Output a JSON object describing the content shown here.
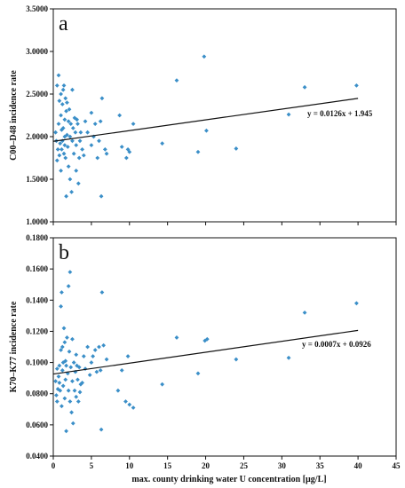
{
  "chart_data": [
    {
      "type": "scatter",
      "panel_label": "a",
      "ylabel": "C00–D48  incidence rate",
      "xlabel": "",
      "ylim": [
        1.0,
        3.5
      ],
      "yticks": [
        "1.0000",
        "1.5000",
        "2.0000",
        "2.5000",
        "3.0000",
        "3.5000"
      ],
      "xlim": [
        0,
        45
      ],
      "xticks": [],
      "marker_color": "#3b8fc8",
      "grid": false,
      "trendline": {
        "slope": 0.0126,
        "intercept": 1.945,
        "label": "y = 0.0126x + 1.945"
      },
      "points": [
        [
          0.3,
          2.05
        ],
        [
          0.4,
          1.95
        ],
        [
          0.5,
          2.6
        ],
        [
          0.5,
          1.72
        ],
        [
          0.6,
          1.85
        ],
        [
          0.7,
          2.15
        ],
        [
          0.7,
          2.72
        ],
        [
          0.8,
          1.78
        ],
        [
          0.8,
          2.42
        ],
        [
          0.9,
          1.92
        ],
        [
          1.0,
          2.25
        ],
        [
          1.0,
          1.6
        ],
        [
          1.0,
          2.5
        ],
        [
          1.1,
          2.08
        ],
        [
          1.1,
          1.85
        ],
        [
          1.2,
          2.38
        ],
        [
          1.2,
          1.95
        ],
        [
          1.3,
          2.55
        ],
        [
          1.3,
          2.1
        ],
        [
          1.4,
          1.8
        ],
        [
          1.4,
          2.6
        ],
        [
          1.5,
          2.2
        ],
        [
          1.5,
          1.9
        ],
        [
          1.5,
          2.0
        ],
        [
          1.6,
          1.75
        ],
        [
          1.6,
          2.45
        ],
        [
          1.7,
          2.3
        ],
        [
          1.7,
          1.3
        ],
        [
          1.8,
          2.02
        ],
        [
          1.8,
          2.4
        ],
        [
          1.9,
          1.88
        ],
        [
          2.0,
          1.65
        ],
        [
          2.0,
          2.18
        ],
        [
          2.1,
          2.32
        ],
        [
          2.2,
          1.5
        ],
        [
          2.2,
          2.0
        ],
        [
          2.3,
          2.15
        ],
        [
          2.4,
          1.35
        ],
        [
          2.5,
          1.95
        ],
        [
          2.5,
          2.55
        ],
        [
          2.6,
          2.1
        ],
        [
          2.7,
          1.8
        ],
        [
          2.8,
          2.22
        ],
        [
          2.9,
          2.05
        ],
        [
          3.0,
          1.6
        ],
        [
          3.0,
          1.9
        ],
        [
          3.1,
          2.2
        ],
        [
          3.2,
          2.15
        ],
        [
          3.3,
          1.45
        ],
        [
          3.4,
          1.75
        ],
        [
          3.5,
          1.95
        ],
        [
          3.6,
          2.05
        ],
        [
          3.8,
          1.85
        ],
        [
          4.0,
          1.78
        ],
        [
          4.2,
          2.18
        ],
        [
          4.5,
          2.05
        ],
        [
          5.0,
          1.9
        ],
        [
          5.0,
          2.28
        ],
        [
          5.3,
          2.0
        ],
        [
          5.5,
          2.15
        ],
        [
          5.8,
          1.75
        ],
        [
          6.0,
          1.95
        ],
        [
          6.2,
          2.18
        ],
        [
          6.3,
          1.3
        ],
        [
          6.4,
          2.45
        ],
        [
          6.8,
          1.85
        ],
        [
          7.0,
          1.8
        ],
        [
          8.7,
          2.25
        ],
        [
          9.0,
          1.88
        ],
        [
          9.6,
          1.75
        ],
        [
          9.8,
          1.85
        ],
        [
          10.0,
          1.82
        ],
        [
          10.5,
          2.15
        ],
        [
          14.3,
          1.92
        ],
        [
          16.2,
          2.66
        ],
        [
          19.0,
          1.82
        ],
        [
          19.8,
          2.94
        ],
        [
          20.1,
          2.07
        ],
        [
          24.0,
          1.86
        ],
        [
          30.9,
          2.26
        ],
        [
          33.0,
          2.58
        ],
        [
          39.8,
          2.6
        ]
      ]
    },
    {
      "type": "scatter",
      "panel_label": "b",
      "ylabel": "K70–K77  incidence rate",
      "xlabel": "max. county drinking water U concentration [µg/L]",
      "ylim": [
        0.04,
        0.18
      ],
      "yticks": [
        "0.0400",
        "0.0600",
        "0.0800",
        "0.1000",
        "0.1200",
        "0.1400",
        "0.1600",
        "0.1800"
      ],
      "xlim": [
        0,
        45
      ],
      "xticks": [
        "0",
        "5",
        "10",
        "15",
        "20",
        "25",
        "30",
        "35",
        "40",
        "45"
      ],
      "marker_color": "#3b8fc8",
      "grid": false,
      "trendline": {
        "slope": 0.0007,
        "intercept": 0.0926,
        "label": "y = 0.0007x + 0.0926"
      },
      "points": [
        [
          0.3,
          0.088
        ],
        [
          0.4,
          0.079
        ],
        [
          0.5,
          0.096
        ],
        [
          0.5,
          0.075
        ],
        [
          0.6,
          0.083
        ],
        [
          0.7,
          0.091
        ],
        [
          0.8,
          0.087
        ],
        [
          0.8,
          0.098
        ],
        [
          0.9,
          0.082
        ],
        [
          1.0,
          0.108
        ],
        [
          1.0,
          0.136
        ],
        [
          1.1,
          0.145
        ],
        [
          1.1,
          0.072
        ],
        [
          1.2,
          0.11
        ],
        [
          1.2,
          0.095
        ],
        [
          1.3,
          0.1
        ],
        [
          1.3,
          0.085
        ],
        [
          1.4,
          0.122
        ],
        [
          1.5,
          0.113
        ],
        [
          1.5,
          0.077
        ],
        [
          1.6,
          0.101
        ],
        [
          1.6,
          0.089
        ],
        [
          1.7,
          0.056
        ],
        [
          1.7,
          0.098
        ],
        [
          1.8,
          0.116
        ],
        [
          1.9,
          0.093
        ],
        [
          2.0,
          0.082
        ],
        [
          2.0,
          0.149
        ],
        [
          2.1,
          0.107
        ],
        [
          2.2,
          0.158
        ],
        [
          2.2,
          0.075
        ],
        [
          2.3,
          0.097
        ],
        [
          2.4,
          0.068
        ],
        [
          2.5,
          0.115
        ],
        [
          2.5,
          0.088
        ],
        [
          2.6,
          0.061
        ],
        [
          2.7,
          0.1
        ],
        [
          2.8,
          0.082
        ],
        [
          2.9,
          0.094
        ],
        [
          3.0,
          0.078
        ],
        [
          3.0,
          0.105
        ],
        [
          3.1,
          0.098
        ],
        [
          3.2,
          0.089
        ],
        [
          3.3,
          0.075
        ],
        [
          3.4,
          0.097
        ],
        [
          3.5,
          0.081
        ],
        [
          3.6,
          0.086
        ],
        [
          3.8,
          0.087
        ],
        [
          4.0,
          0.104
        ],
        [
          4.2,
          0.096
        ],
        [
          4.5,
          0.11
        ],
        [
          4.8,
          0.092
        ],
        [
          5.0,
          0.1
        ],
        [
          5.2,
          0.104
        ],
        [
          5.5,
          0.108
        ],
        [
          5.7,
          0.094
        ],
        [
          6.0,
          0.11
        ],
        [
          6.2,
          0.095
        ],
        [
          6.3,
          0.057
        ],
        [
          6.4,
          0.145
        ],
        [
          6.6,
          0.111
        ],
        [
          7.0,
          0.102
        ],
        [
          8.5,
          0.082
        ],
        [
          9.0,
          0.095
        ],
        [
          9.5,
          0.075
        ],
        [
          9.8,
          0.104
        ],
        [
          10.0,
          0.073
        ],
        [
          10.5,
          0.071
        ],
        [
          14.3,
          0.086
        ],
        [
          16.2,
          0.116
        ],
        [
          19.0,
          0.093
        ],
        [
          19.9,
          0.114
        ],
        [
          20.2,
          0.115
        ],
        [
          24.0,
          0.102
        ],
        [
          30.9,
          0.103
        ],
        [
          33.0,
          0.132
        ],
        [
          39.8,
          0.138
        ]
      ]
    }
  ]
}
